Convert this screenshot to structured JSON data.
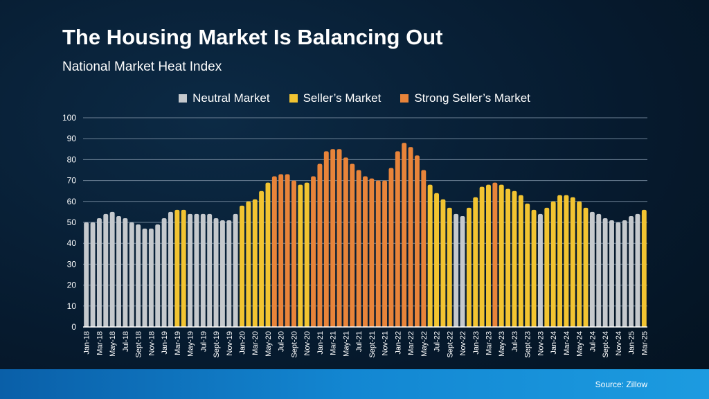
{
  "title": "The Housing Market Is Balancing Out",
  "subtitle": "National Market Heat Index",
  "source": "Source: Zillow",
  "colors": {
    "neutral": "#c5c9cd",
    "seller": "#f2c431",
    "strong": "#e8843a",
    "grid": "#6f8397",
    "axis": "#ffffff"
  },
  "legend": [
    {
      "key": "neutral",
      "label": "Neutral Market"
    },
    {
      "key": "seller",
      "label": "Seller’s Market"
    },
    {
      "key": "strong",
      "label": "Strong Seller’s Market"
    }
  ],
  "chart_data": {
    "type": "bar",
    "ylim": [
      0,
      100
    ],
    "yticks": [
      0,
      10,
      20,
      30,
      40,
      50,
      60,
      70,
      80,
      90,
      100
    ],
    "grid": true,
    "legend_position": "top",
    "categories": [
      "Jan-18",
      "Feb-18",
      "Mar-18",
      "Apr-18",
      "May-18",
      "Jun-18",
      "Jul-18",
      "Aug-18",
      "Sept-18",
      "Oct-18",
      "Nov-18",
      "Dec-18",
      "Jan-19",
      "Feb-19",
      "Mar-19",
      "Apr-19",
      "May-19",
      "Jun-19",
      "Jul-19",
      "Aug-19",
      "Sept-19",
      "Oct-19",
      "Nov-19",
      "Dec-19",
      "Jan-20",
      "Feb-20",
      "Mar-20",
      "Apr-20",
      "May-20",
      "Jun-20",
      "Jul-20",
      "Aug-20",
      "Sept-20",
      "Oct-20",
      "Nov-20",
      "Dec-20",
      "Jan-21",
      "Feb-21",
      "Mar-21",
      "Apr-21",
      "May-21",
      "Jun-21",
      "Jul-21",
      "Aug-21",
      "Sept-21",
      "Oct-21",
      "Nov-21",
      "Dec-21",
      "Jan-22",
      "Feb-22",
      "Mar-22",
      "Apr-22",
      "May-22",
      "Jun-22",
      "Jul-22",
      "Aug-22",
      "Sept-22",
      "Oct-22",
      "Nov-22",
      "Dec-22",
      "Jan-23",
      "Feb-23",
      "Mar-23",
      "Apr-23",
      "May-23",
      "Jun-23",
      "Jul-23",
      "Aug-23",
      "Sept-23",
      "Oct-23",
      "Nov-23",
      "Dec-23",
      "Jan-24",
      "Feb-24",
      "Mar-24",
      "Apr-24",
      "May-24",
      "Jun-24",
      "Jul-24",
      "Aug-24",
      "Sept-24",
      "Oct-24",
      "Nov-24",
      "Dec-24",
      "Jan-25",
      "Feb-25",
      "Mar-25"
    ],
    "tick_labels_shown": [
      "Jan-18",
      "Mar-18",
      "May-18",
      "Jul-18",
      "Sept-18",
      "Nov-18",
      "Jan-19",
      "Mar-19",
      "May-19",
      "Jul-19",
      "Sept-19",
      "Nov-19",
      "Jan-20",
      "Mar-20",
      "May-20",
      "Jul-20",
      "Sept-20",
      "Nov-20",
      "Jan-21",
      "Mar-21",
      "May-21",
      "Jul-21",
      "Sept-21",
      "Nov-21",
      "Jan-22",
      "Mar-22",
      "May-22",
      "Jul-22",
      "Sept-22",
      "Nov-22",
      "Jan-23",
      "Mar-23",
      "May-23",
      "Jul-23",
      "Sept-23",
      "Nov-23",
      "Jan-24",
      "Mar-24",
      "May-24",
      "Jul-24",
      "Sept-24",
      "Nov-24",
      "Jan-25",
      "Mar-25"
    ],
    "values": [
      50,
      50,
      52,
      54,
      55,
      53,
      52,
      50,
      49,
      47,
      47,
      49,
      52,
      55,
      56,
      56,
      54,
      54,
      54,
      54,
      52,
      51,
      51,
      54,
      58,
      60,
      61,
      65,
      69,
      72,
      73,
      73,
      70,
      68,
      69,
      72,
      78,
      84,
      85,
      85,
      81,
      78,
      75,
      72,
      71,
      70,
      70,
      76,
      84,
      88,
      86,
      82,
      75,
      68,
      64,
      61,
      57,
      54,
      53,
      57,
      62,
      67,
      68,
      69,
      68,
      66,
      65,
      63,
      59,
      56,
      54,
      57,
      60,
      63,
      63,
      62,
      60,
      57,
      55,
      54,
      52,
      51,
      50,
      51,
      53,
      54,
      56
    ],
    "market": [
      "neutral",
      "neutral",
      "neutral",
      "neutral",
      "neutral",
      "neutral",
      "neutral",
      "neutral",
      "neutral",
      "neutral",
      "neutral",
      "neutral",
      "neutral",
      "neutral",
      "seller",
      "seller",
      "neutral",
      "neutral",
      "neutral",
      "neutral",
      "neutral",
      "neutral",
      "neutral",
      "neutral",
      "seller",
      "seller",
      "seller",
      "seller",
      "seller",
      "strong",
      "strong",
      "strong",
      "strong",
      "seller",
      "seller",
      "strong",
      "strong",
      "strong",
      "strong",
      "strong",
      "strong",
      "strong",
      "strong",
      "strong",
      "strong",
      "strong",
      "strong",
      "strong",
      "strong",
      "strong",
      "strong",
      "strong",
      "strong",
      "seller",
      "seller",
      "seller",
      "seller",
      "neutral",
      "neutral",
      "seller",
      "seller",
      "seller",
      "seller",
      "strong",
      "seller",
      "seller",
      "seller",
      "seller",
      "seller",
      "seller",
      "neutral",
      "seller",
      "seller",
      "seller",
      "seller",
      "seller",
      "seller",
      "seller",
      "neutral",
      "neutral",
      "neutral",
      "neutral",
      "neutral",
      "neutral",
      "neutral",
      "neutral",
      "seller"
    ]
  }
}
